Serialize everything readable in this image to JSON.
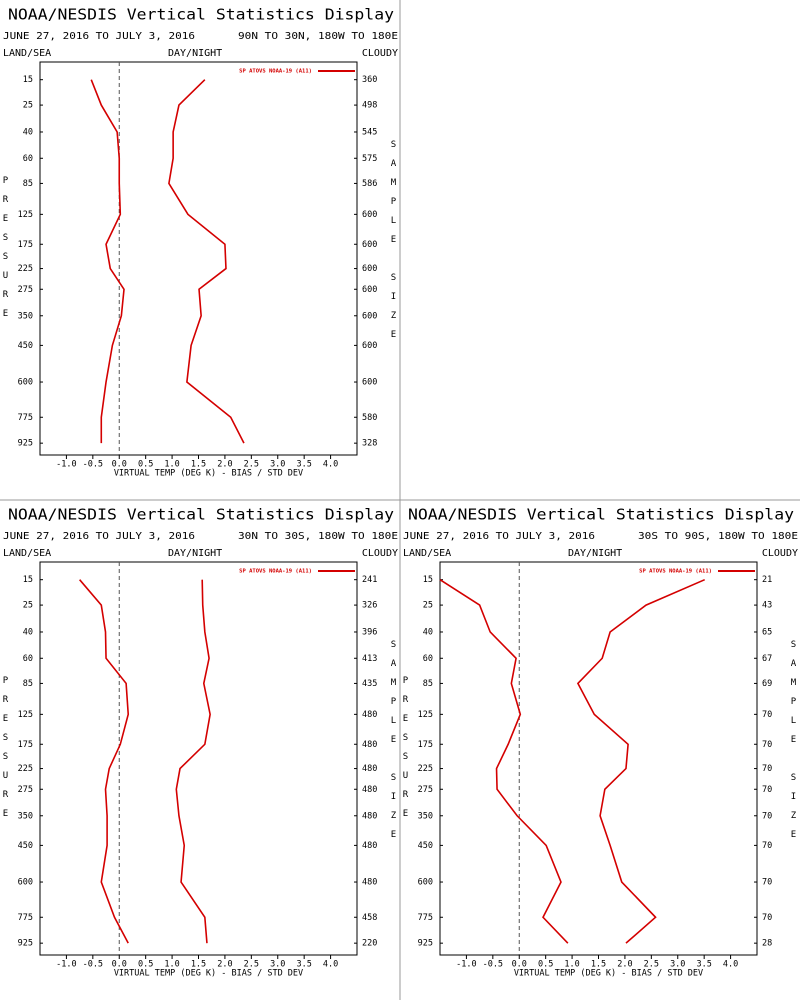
{
  "chart_data": [
    {
      "type": "line",
      "title": "NOAA/NESDIS Vertical Statistics Display",
      "subtitle": "JUNE 27, 2016 TO JULY 3, 2016",
      "region": "90N TO 30N, 180W TO 180E",
      "land_sea": "LAND/SEA",
      "day_night": "DAY/NIGHT",
      "cloud": "CLOUDY",
      "y_label": "PRESSURE",
      "sample_label": "SAMPLE SIZE",
      "x_label": "VIRTUAL TEMP (DEG K) - BIAS / STD DEV",
      "y": [
        15,
        25,
        40,
        60,
        85,
        125,
        175,
        225,
        275,
        350,
        450,
        600,
        775,
        925
      ],
      "sample_size": [
        360,
        498,
        545,
        575,
        586,
        600,
        600,
        600,
        600,
        600,
        600,
        600,
        580,
        328
      ],
      "series": [
        {
          "name": "SP ATOVS NOAA-19 (A11)",
          "color": "#d40000",
          "bias": [
            -0.53,
            -0.34,
            -0.04,
            0,
            0,
            0.02,
            -0.25,
            -0.17,
            0.09,
            0.04,
            -0.13,
            -0.25,
            -0.34,
            -0.34
          ],
          "std_dev": [
            1.62,
            1.13,
            1.02,
            1.02,
            0.94,
            1.3,
            2.0,
            2.02,
            1.51,
            1.55,
            1.36,
            1.28,
            2.11,
            2.36
          ]
        }
      ],
      "xlim": [
        -1.5,
        4.5
      ],
      "xticks": [
        {
          "value": -1,
          "label": "-1.0"
        },
        -0.5,
        {
          "value": 0,
          "label": "0.0"
        },
        0.5,
        {
          "value": 1,
          "label": "1.0"
        },
        1.5,
        {
          "value": 2,
          "label": "2.0"
        },
        2.5,
        {
          "value": 3,
          "label": "3.0"
        },
        3.5,
        {
          "value": 4,
          "label": "4.0"
        }
      ],
      "ylim": [
        10,
        1000
      ]
    },
    {
      "type": "line",
      "title": "NOAA/NESDIS Vertical Statistics Display",
      "subtitle": "JUNE 27, 2016 TO JULY 3, 2016",
      "region": "30N TO 30S, 180W TO 180E",
      "land_sea": "LAND/SEA",
      "day_night": "DAY/NIGHT",
      "cloud": "CLOUDY",
      "y_label": "PRESSURE",
      "sample_label": "SAMPLE SIZE",
      "x_label": "VIRTUAL TEMP (DEG K) - BIAS / STD DEV",
      "y": [
        15,
        25,
        40,
        60,
        85,
        125,
        175,
        225,
        275,
        350,
        450,
        600,
        775,
        925
      ],
      "sample_size": [
        241,
        326,
        396,
        413,
        435,
        480,
        480,
        480,
        480,
        480,
        480,
        480,
        458,
        220
      ],
      "series": [
        {
          "name": "SP ATOVS NOAA-19 (A11)",
          "color": "#d40000",
          "bias": [
            -0.75,
            -0.34,
            -0.26,
            -0.25,
            0.13,
            0.17,
            0.02,
            -0.19,
            -0.26,
            -0.23,
            -0.23,
            -0.34,
            -0.09,
            0.17
          ],
          "std_dev": [
            1.57,
            1.58,
            1.62,
            1.7,
            1.6,
            1.72,
            1.62,
            1.15,
            1.08,
            1.13,
            1.23,
            1.17,
            1.62,
            1.66
          ]
        }
      ],
      "xlim": [
        -1.5,
        4.5
      ],
      "xticks": [
        {
          "value": -1,
          "label": "-1.0"
        },
        -0.5,
        {
          "value": 0,
          "label": "0.0"
        },
        0.5,
        {
          "value": 1,
          "label": "1.0"
        },
        1.5,
        {
          "value": 2,
          "label": "2.0"
        },
        2.5,
        {
          "value": 3,
          "label": "3.0"
        },
        3.5,
        {
          "value": 4,
          "label": "4.0"
        }
      ],
      "ylim": [
        10,
        1000
      ]
    },
    {
      "type": "line",
      "title": "NOAA/NESDIS Vertical Statistics Display",
      "subtitle": "JUNE 27, 2016 TO JULY 3, 2016",
      "region": "30S TO 90S, 180W TO 180E",
      "land_sea": "LAND/SEA",
      "day_night": "DAY/NIGHT",
      "cloud": "CLOUDY",
      "y_label": "PRESSURE",
      "sample_label": "SAMPLE SIZE",
      "x_label": "VIRTUAL TEMP (DEG K) - BIAS / STD DEV",
      "y": [
        15,
        25,
        40,
        60,
        85,
        125,
        175,
        225,
        275,
        350,
        450,
        600,
        775,
        925
      ],
      "sample_size": [
        21,
        43,
        65,
        67,
        69,
        70,
        70,
        70,
        70,
        70,
        70,
        70,
        70,
        28
      ],
      "series": [
        {
          "name": "SP ATOVS NOAA-19 (A11)",
          "color": "#d40000",
          "bias": [
            -1.5,
            -0.75,
            -0.55,
            -0.06,
            -0.15,
            0.02,
            -0.21,
            -0.43,
            -0.42,
            -0.04,
            0.51,
            0.79,
            0.45,
            0.92
          ],
          "std_dev": [
            3.51,
            2.4,
            1.72,
            1.57,
            1.11,
            1.42,
            2.06,
            2.02,
            1.62,
            1.53,
            1.72,
            1.94,
            2.58,
            2.02
          ]
        }
      ],
      "xlim": [
        -1.5,
        4.5
      ],
      "xticks": [
        {
          "value": -1,
          "label": "-1.0"
        },
        -0.5,
        {
          "value": 0,
          "label": "0.0"
        },
        0.5,
        {
          "value": 1,
          "label": "1.0"
        },
        1.5,
        {
          "value": 2,
          "label": "2.0"
        },
        2.5,
        {
          "value": 3,
          "label": "3.0"
        },
        3.5,
        {
          "value": 4,
          "label": "4.0"
        }
      ],
      "ylim": [
        10,
        1000
      ]
    }
  ]
}
